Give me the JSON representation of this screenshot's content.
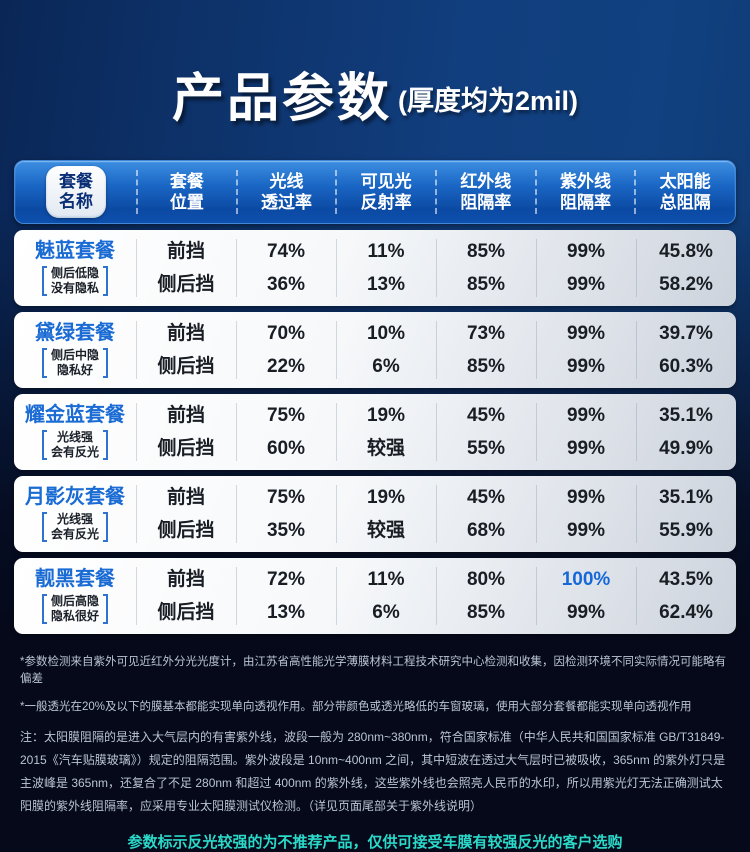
{
  "title": {
    "main": "产品参数",
    "sub": "(厚度均为2mil)"
  },
  "table": {
    "name_header": "套餐\n名称",
    "headers": [
      "套餐\n位置",
      "光线\n透过率",
      "可见光\n反射率",
      "红外线\n阻隔率",
      "紫外线\n阻隔率",
      "太阳能\n总阻隔"
    ],
    "highlight_value": "100%",
    "rows": [
      {
        "name": "魅蓝套餐",
        "note1": "侧后低隐",
        "note2": "没有隐私",
        "front": {
          "position": "前挡",
          "vlt": "74%",
          "reflect": "11%",
          "ir": "85%",
          "uv": "99%",
          "tser": "45.8%"
        },
        "rear": {
          "position": "侧后挡",
          "vlt": "36%",
          "reflect": "13%",
          "ir": "85%",
          "uv": "99%",
          "tser": "58.2%"
        }
      },
      {
        "name": "黛绿套餐",
        "note1": "侧后中隐",
        "note2": "隐私好",
        "front": {
          "position": "前挡",
          "vlt": "70%",
          "reflect": "10%",
          "ir": "73%",
          "uv": "99%",
          "tser": "39.7%"
        },
        "rear": {
          "position": "侧后挡",
          "vlt": "22%",
          "reflect": "6%",
          "ir": "85%",
          "uv": "99%",
          "tser": "60.3%"
        }
      },
      {
        "name": "耀金蓝套餐",
        "note1": "光线强",
        "note2": "会有反光",
        "front": {
          "position": "前挡",
          "vlt": "75%",
          "reflect": "19%",
          "ir": "45%",
          "uv": "99%",
          "tser": "35.1%"
        },
        "rear": {
          "position": "侧后挡",
          "vlt": "60%",
          "reflect": "较强",
          "ir": "55%",
          "uv": "99%",
          "tser": "49.9%"
        }
      },
      {
        "name": "月影灰套餐",
        "note1": "光线强",
        "note2": "会有反光",
        "front": {
          "position": "前挡",
          "vlt": "75%",
          "reflect": "19%",
          "ir": "45%",
          "uv": "99%",
          "tser": "35.1%"
        },
        "rear": {
          "position": "侧后挡",
          "vlt": "35%",
          "reflect": "较强",
          "ir": "68%",
          "uv": "99%",
          "tser": "55.9%"
        }
      },
      {
        "name": "靓黑套餐",
        "note1": "侧后高隐",
        "note2": "隐私很好",
        "front": {
          "position": "前挡",
          "vlt": "72%",
          "reflect": "11%",
          "ir": "80%",
          "uv": "100%",
          "tser": "43.5%"
        },
        "rear": {
          "position": "侧后挡",
          "vlt": "13%",
          "reflect": "6%",
          "ir": "85%",
          "uv": "99%",
          "tser": "62.4%"
        }
      }
    ]
  },
  "footnotes": [
    "*参数检测来自紫外可见近红外分光光度计，由江苏省高性能光学薄膜材料工程技术研究中心检测和收集，因检测环境不同实际情况可能略有偏差",
    "*一般透光在20%及以下的膜基本都能实现单向透视作用。部分带颜色或透光略低的车窗玻璃，使用大部分套餐都能实现单向透视作用"
  ],
  "note": "注：太阳膜阻隔的是进入大气层内的有害紫外线，波段一般为 280nm~380nm，符合国家标准（中华人民共和国国家标准 GB/T31849-2015《汽车贴膜玻璃》）规定的阻隔范围。紫外波段是 10nm~400nm 之间，其中短波在透过大气层时已被吸收，365nm 的紫外灯只是主波峰是 365nm，还复合了不足 280nm 和超过 400nm 的紫外线，这些紫外线也会照亮人民币的水印，所以用紫光灯无法正确测试太阳膜的紫外线阻隔率，应采用专业太阳膜测试仪检测。（详见页面尾部关于紫外线说明）",
  "warning": "参数标示反光较强的为不推荐产品，仅供可接受车膜有较强反光的客户选购",
  "colors": {
    "package_name_blue": "#1a6bd4",
    "highlight_blue": "#1668d8",
    "warning_teal": "#2bd9c9",
    "header_blue_top": "#3d8fe2",
    "header_blue_bottom": "#0b4aa3"
  }
}
